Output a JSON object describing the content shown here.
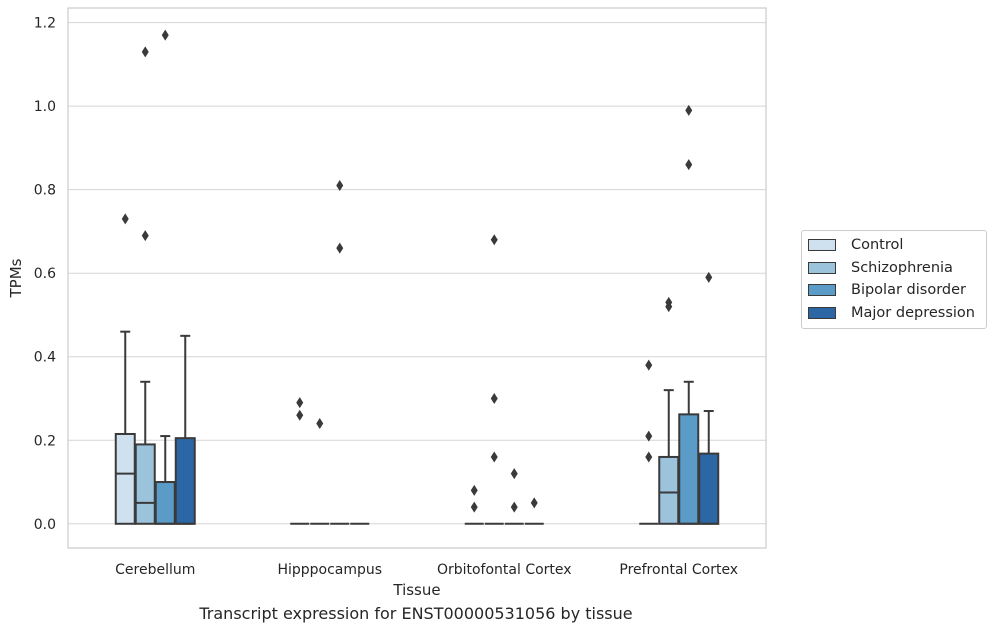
{
  "chart_data": {
    "type": "box",
    "caption": "Transcript expression for ENST00000531056 by tissue",
    "xlabel": "Tissue",
    "ylabel": "TPMs",
    "ylim": [
      -0.058,
      1.235
    ],
    "yticks": [
      0.0,
      0.2,
      0.4,
      0.6,
      0.8,
      1.0,
      1.2
    ],
    "ytick_labels": [
      "0.0",
      "0.2",
      "0.4",
      "0.6",
      "0.8",
      "1.0",
      "1.2"
    ],
    "grid": "y",
    "categories": [
      "Cerebellum",
      "Hipppocampus",
      "Orbitofontal Cortex",
      "Prefrontal Cortex"
    ],
    "legend_position": "right",
    "series": [
      {
        "name": "Control",
        "color": "#cfe0ef",
        "boxes": [
          {
            "q1": 0.0,
            "median": 0.12,
            "q3": 0.215,
            "whisker_low": 0.0,
            "whisker_high": 0.46,
            "outliers": [
              0.73
            ]
          },
          {
            "q1": 0.0,
            "median": 0.0,
            "q3": 0.0,
            "whisker_low": 0.0,
            "whisker_high": 0.0,
            "outliers": [
              0.26,
              0.29
            ]
          },
          {
            "q1": 0.0,
            "median": 0.0,
            "q3": 0.0,
            "whisker_low": 0.0,
            "whisker_high": 0.0,
            "outliers": [
              0.04,
              0.08
            ]
          },
          {
            "q1": 0.0,
            "median": 0.0,
            "q3": 0.0,
            "whisker_low": 0.0,
            "whisker_high": 0.0,
            "outliers": [
              0.16,
              0.21,
              0.38
            ]
          }
        ]
      },
      {
        "name": "Schizophrenia",
        "color": "#9cc3dc",
        "boxes": [
          {
            "q1": 0.0,
            "median": 0.05,
            "q3": 0.19,
            "whisker_low": 0.0,
            "whisker_high": 0.34,
            "outliers": [
              0.69,
              1.13
            ]
          },
          {
            "q1": 0.0,
            "median": 0.0,
            "q3": 0.0,
            "whisker_low": 0.0,
            "whisker_high": 0.0,
            "outliers": [
              0.24
            ]
          },
          {
            "q1": 0.0,
            "median": 0.0,
            "q3": 0.0,
            "whisker_low": 0.0,
            "whisker_high": 0.0,
            "outliers": [
              0.16,
              0.3,
              0.68
            ]
          },
          {
            "q1": 0.0,
            "median": 0.075,
            "q3": 0.16,
            "whisker_low": 0.0,
            "whisker_high": 0.32,
            "outliers": [
              0.52,
              0.53
            ]
          }
        ]
      },
      {
        "name": "Bipolar disorder",
        "color": "#5a9bc8",
        "boxes": [
          {
            "q1": 0.0,
            "median": 0.0,
            "q3": 0.1,
            "whisker_low": 0.0,
            "whisker_high": 0.21,
            "outliers": [
              1.17
            ]
          },
          {
            "q1": 0.0,
            "median": 0.0,
            "q3": 0.0,
            "whisker_low": 0.0,
            "whisker_high": 0.0,
            "outliers": [
              0.66,
              0.81
            ]
          },
          {
            "q1": 0.0,
            "median": 0.0,
            "q3": 0.0,
            "whisker_low": 0.0,
            "whisker_high": 0.0,
            "outliers": [
              0.04,
              0.12
            ]
          },
          {
            "q1": 0.0,
            "median": 0.0,
            "q3": 0.262,
            "whisker_low": 0.0,
            "whisker_high": 0.34,
            "outliers": [
              0.86,
              0.99
            ]
          }
        ]
      },
      {
        "name": "Major depression",
        "color": "#2a67a4",
        "boxes": [
          {
            "q1": 0.0,
            "median": 0.0,
            "q3": 0.205,
            "whisker_low": 0.0,
            "whisker_high": 0.45,
            "outliers": []
          },
          {
            "q1": 0.0,
            "median": 0.0,
            "q3": 0.0,
            "whisker_low": 0.0,
            "whisker_high": 0.0,
            "outliers": []
          },
          {
            "q1": 0.0,
            "median": 0.0,
            "q3": 0.0,
            "whisker_low": 0.0,
            "whisker_high": 0.0,
            "outliers": [
              0.05
            ]
          },
          {
            "q1": 0.0,
            "median": 0.0,
            "q3": 0.168,
            "whisker_low": 0.0,
            "whisker_high": 0.27,
            "outliers": [
              0.59
            ]
          }
        ]
      }
    ]
  }
}
